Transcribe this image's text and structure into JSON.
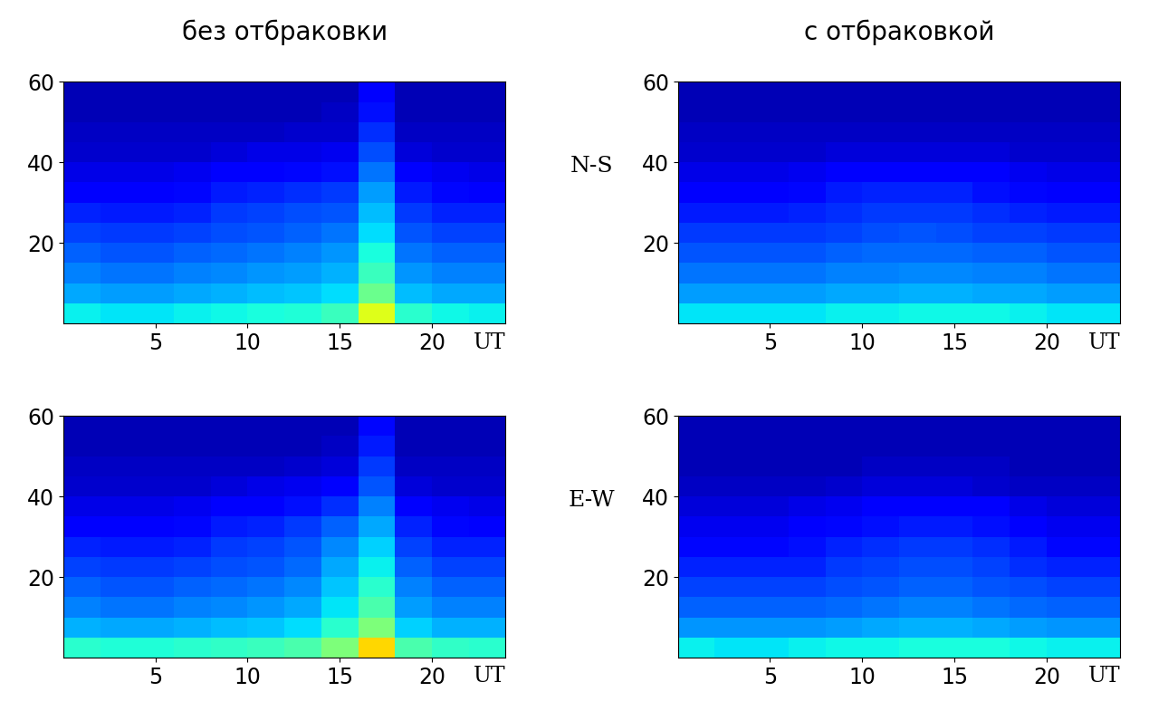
{
  "column_titles": [
    "без отбраковки",
    "с отбраковкой"
  ],
  "row_labels": [
    "N-S",
    "E-W"
  ],
  "chart_data": [
    {
      "type": "heatmap",
      "x_label": "UT",
      "xlim": [
        0,
        24
      ],
      "ylim": [
        0,
        60
      ],
      "xticks": [
        5,
        10,
        15,
        20
      ],
      "yticks": [
        20,
        40,
        60
      ],
      "x_edges": [
        0,
        2,
        4,
        6,
        8,
        10,
        12,
        14,
        16,
        18,
        20,
        22,
        24
      ],
      "y_edges": [
        0,
        5,
        10,
        15,
        20,
        25,
        30,
        35,
        40,
        45,
        50,
        55,
        60
      ],
      "color_range": [
        0,
        1
      ],
      "cells": [
        [
          0.36,
          0.35,
          0.35,
          0.36,
          0.37,
          0.38,
          0.39,
          0.42,
          0.62,
          0.4,
          0.37,
          0.36
        ],
        [
          0.29,
          0.28,
          0.28,
          0.29,
          0.3,
          0.31,
          0.32,
          0.34,
          0.48,
          0.31,
          0.29,
          0.29
        ],
        [
          0.25,
          0.24,
          0.24,
          0.25,
          0.26,
          0.27,
          0.28,
          0.3,
          0.42,
          0.27,
          0.25,
          0.25
        ],
        [
          0.22,
          0.21,
          0.21,
          0.22,
          0.23,
          0.24,
          0.25,
          0.27,
          0.38,
          0.24,
          0.22,
          0.22
        ],
        [
          0.19,
          0.18,
          0.18,
          0.19,
          0.2,
          0.21,
          0.22,
          0.24,
          0.34,
          0.21,
          0.19,
          0.19
        ],
        [
          0.16,
          0.15,
          0.15,
          0.16,
          0.18,
          0.19,
          0.2,
          0.21,
          0.31,
          0.18,
          0.16,
          0.16
        ],
        [
          0.12,
          0.12,
          0.12,
          0.13,
          0.15,
          0.16,
          0.17,
          0.18,
          0.28,
          0.15,
          0.13,
          0.12
        ],
        [
          0.09,
          0.09,
          0.09,
          0.1,
          0.11,
          0.12,
          0.13,
          0.14,
          0.24,
          0.11,
          0.1,
          0.09
        ],
        [
          0.07,
          0.07,
          0.07,
          0.07,
          0.08,
          0.09,
          0.09,
          0.1,
          0.2,
          0.08,
          0.07,
          0.07
        ],
        [
          0.06,
          0.06,
          0.06,
          0.06,
          0.06,
          0.06,
          0.07,
          0.07,
          0.17,
          0.06,
          0.06,
          0.06
        ],
        [
          0.05,
          0.05,
          0.05,
          0.05,
          0.05,
          0.05,
          0.05,
          0.06,
          0.14,
          0.05,
          0.05,
          0.05
        ],
        [
          0.05,
          0.05,
          0.05,
          0.05,
          0.05,
          0.05,
          0.05,
          0.05,
          0.12,
          0.05,
          0.05,
          0.05
        ]
      ]
    },
    {
      "type": "heatmap",
      "x_label": "UT",
      "xlim": [
        0,
        24
      ],
      "ylim": [
        0,
        60
      ],
      "xticks": [
        5,
        10,
        15,
        20
      ],
      "yticks": [
        20,
        40,
        60
      ],
      "x_edges": [
        0,
        2,
        4,
        6,
        8,
        10,
        12,
        14,
        16,
        18,
        20,
        22,
        24
      ],
      "y_edges": [
        0,
        5,
        10,
        15,
        20,
        25,
        30,
        35,
        40,
        45,
        50,
        55,
        60
      ],
      "color_range": [
        0,
        1
      ],
      "cells": [
        [
          0.35,
          0.35,
          0.35,
          0.35,
          0.36,
          0.36,
          0.37,
          0.37,
          0.37,
          0.36,
          0.35,
          0.35
        ],
        [
          0.28,
          0.28,
          0.28,
          0.28,
          0.29,
          0.29,
          0.3,
          0.3,
          0.29,
          0.29,
          0.28,
          0.28
        ],
        [
          0.24,
          0.24,
          0.24,
          0.24,
          0.25,
          0.25,
          0.26,
          0.26,
          0.25,
          0.25,
          0.24,
          0.24
        ],
        [
          0.21,
          0.21,
          0.21,
          0.21,
          0.22,
          0.23,
          0.23,
          0.23,
          0.22,
          0.22,
          0.21,
          0.21
        ],
        [
          0.18,
          0.18,
          0.18,
          0.18,
          0.19,
          0.2,
          0.21,
          0.2,
          0.19,
          0.19,
          0.18,
          0.18
        ],
        [
          0.15,
          0.15,
          0.15,
          0.16,
          0.17,
          0.18,
          0.18,
          0.18,
          0.17,
          0.16,
          0.15,
          0.15
        ],
        [
          0.12,
          0.12,
          0.12,
          0.13,
          0.15,
          0.16,
          0.16,
          0.16,
          0.14,
          0.13,
          0.12,
          0.12
        ],
        [
          0.09,
          0.09,
          0.09,
          0.1,
          0.11,
          0.12,
          0.12,
          0.12,
          0.11,
          0.1,
          0.09,
          0.09
        ],
        [
          0.07,
          0.07,
          0.07,
          0.07,
          0.08,
          0.08,
          0.08,
          0.08,
          0.08,
          0.07,
          0.07,
          0.07
        ],
        [
          0.06,
          0.06,
          0.06,
          0.06,
          0.06,
          0.06,
          0.06,
          0.06,
          0.06,
          0.06,
          0.06,
          0.06
        ],
        [
          0.05,
          0.05,
          0.05,
          0.05,
          0.05,
          0.05,
          0.05,
          0.05,
          0.05,
          0.05,
          0.05,
          0.05
        ],
        [
          0.05,
          0.05,
          0.05,
          0.05,
          0.05,
          0.05,
          0.05,
          0.05,
          0.05,
          0.05,
          0.05,
          0.05
        ]
      ]
    },
    {
      "type": "heatmap",
      "x_label": "UT",
      "xlim": [
        0,
        24
      ],
      "ylim": [
        0,
        60
      ],
      "xticks": [
        5,
        10,
        15,
        20
      ],
      "yticks": [
        20,
        40,
        60
      ],
      "x_edges": [
        0,
        2,
        4,
        6,
        8,
        10,
        12,
        14,
        16,
        18,
        20,
        22,
        24
      ],
      "y_edges": [
        0,
        5,
        10,
        15,
        20,
        25,
        30,
        35,
        40,
        45,
        50,
        55,
        60
      ],
      "color_range": [
        0,
        1
      ],
      "cells": [
        [
          0.4,
          0.39,
          0.39,
          0.4,
          0.41,
          0.42,
          0.44,
          0.5,
          0.68,
          0.44,
          0.41,
          0.4
        ],
        [
          0.3,
          0.29,
          0.29,
          0.3,
          0.31,
          0.32,
          0.34,
          0.4,
          0.5,
          0.33,
          0.3,
          0.3
        ],
        [
          0.25,
          0.24,
          0.24,
          0.25,
          0.26,
          0.27,
          0.29,
          0.35,
          0.44,
          0.28,
          0.25,
          0.25
        ],
        [
          0.22,
          0.21,
          0.21,
          0.22,
          0.23,
          0.24,
          0.26,
          0.32,
          0.4,
          0.25,
          0.22,
          0.22
        ],
        [
          0.19,
          0.18,
          0.18,
          0.19,
          0.2,
          0.21,
          0.23,
          0.29,
          0.36,
          0.22,
          0.19,
          0.19
        ],
        [
          0.16,
          0.15,
          0.15,
          0.16,
          0.18,
          0.19,
          0.21,
          0.26,
          0.33,
          0.19,
          0.16,
          0.16
        ],
        [
          0.12,
          0.12,
          0.12,
          0.13,
          0.15,
          0.16,
          0.18,
          0.22,
          0.29,
          0.16,
          0.13,
          0.12
        ],
        [
          0.09,
          0.09,
          0.09,
          0.1,
          0.11,
          0.12,
          0.14,
          0.17,
          0.25,
          0.12,
          0.1,
          0.09
        ],
        [
          0.07,
          0.07,
          0.07,
          0.07,
          0.08,
          0.09,
          0.1,
          0.12,
          0.21,
          0.08,
          0.07,
          0.07
        ],
        [
          0.06,
          0.06,
          0.06,
          0.06,
          0.06,
          0.06,
          0.07,
          0.08,
          0.18,
          0.06,
          0.06,
          0.06
        ],
        [
          0.05,
          0.05,
          0.05,
          0.05,
          0.05,
          0.05,
          0.05,
          0.06,
          0.15,
          0.05,
          0.05,
          0.05
        ],
        [
          0.05,
          0.05,
          0.05,
          0.05,
          0.05,
          0.05,
          0.05,
          0.05,
          0.13,
          0.05,
          0.05,
          0.05
        ]
      ]
    },
    {
      "type": "heatmap",
      "x_label": "UT",
      "xlim": [
        0,
        24
      ],
      "ylim": [
        0,
        60
      ],
      "xticks": [
        5,
        10,
        15,
        20
      ],
      "yticks": [
        20,
        40,
        60
      ],
      "x_edges": [
        0,
        2,
        4,
        6,
        8,
        10,
        12,
        14,
        16,
        18,
        20,
        22,
        24
      ],
      "y_edges": [
        0,
        5,
        10,
        15,
        20,
        25,
        30,
        35,
        40,
        45,
        50,
        55,
        60
      ],
      "color_range": [
        0,
        1
      ],
      "cells": [
        [
          0.36,
          0.35,
          0.35,
          0.36,
          0.37,
          0.37,
          0.38,
          0.38,
          0.38,
          0.37,
          0.36,
          0.36
        ],
        [
          0.27,
          0.27,
          0.27,
          0.27,
          0.28,
          0.29,
          0.3,
          0.3,
          0.29,
          0.28,
          0.27,
          0.27
        ],
        [
          0.22,
          0.22,
          0.22,
          0.22,
          0.23,
          0.24,
          0.25,
          0.25,
          0.24,
          0.23,
          0.22,
          0.22
        ],
        [
          0.19,
          0.19,
          0.19,
          0.19,
          0.2,
          0.21,
          0.22,
          0.22,
          0.21,
          0.2,
          0.19,
          0.19
        ],
        [
          0.16,
          0.16,
          0.16,
          0.16,
          0.18,
          0.19,
          0.2,
          0.2,
          0.19,
          0.17,
          0.16,
          0.16
        ],
        [
          0.13,
          0.13,
          0.13,
          0.14,
          0.16,
          0.17,
          0.18,
          0.18,
          0.17,
          0.15,
          0.13,
          0.13
        ],
        [
          0.1,
          0.1,
          0.1,
          0.11,
          0.13,
          0.14,
          0.15,
          0.15,
          0.14,
          0.12,
          0.1,
          0.1
        ],
        [
          0.08,
          0.08,
          0.08,
          0.09,
          0.1,
          0.11,
          0.12,
          0.12,
          0.11,
          0.09,
          0.08,
          0.08
        ],
        [
          0.06,
          0.06,
          0.06,
          0.06,
          0.07,
          0.08,
          0.08,
          0.08,
          0.07,
          0.06,
          0.06,
          0.06
        ],
        [
          0.05,
          0.05,
          0.05,
          0.05,
          0.05,
          0.06,
          0.06,
          0.06,
          0.06,
          0.05,
          0.05,
          0.05
        ],
        [
          0.05,
          0.05,
          0.05,
          0.05,
          0.05,
          0.05,
          0.05,
          0.05,
          0.05,
          0.05,
          0.05,
          0.05
        ],
        [
          0.05,
          0.05,
          0.05,
          0.05,
          0.05,
          0.05,
          0.05,
          0.05,
          0.05,
          0.05,
          0.05,
          0.05
        ]
      ]
    }
  ]
}
